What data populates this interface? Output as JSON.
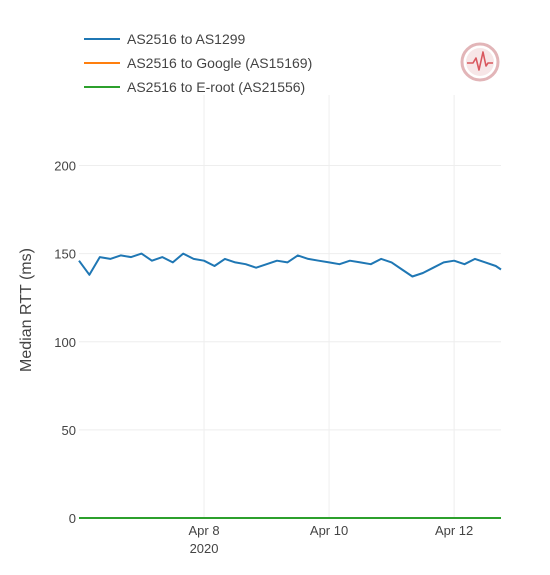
{
  "chart_data": {
    "type": "line",
    "ylabel": "Median RTT (ms)",
    "ylim": [
      0,
      240
    ],
    "yticks": [
      0,
      50,
      100,
      150,
      200
    ],
    "xlim": [
      "2020-04-06T00:00",
      "2020-04-12T18:00"
    ],
    "xticks": [
      {
        "x": "2020-04-08",
        "label": "Apr 8",
        "sublabel": "2020"
      },
      {
        "x": "2020-04-10",
        "label": "Apr 10",
        "sublabel": ""
      },
      {
        "x": "2020-04-12",
        "label": "Apr 12",
        "sublabel": ""
      }
    ],
    "grid": true,
    "legend_position": "top-left",
    "series": [
      {
        "name": "AS2516 to AS1299",
        "color": "#1f77b4",
        "x": [
          "2020-04-06T00:00",
          "2020-04-06T04:00",
          "2020-04-06T08:00",
          "2020-04-06T12:00",
          "2020-04-06T16:00",
          "2020-04-06T20:00",
          "2020-04-07T00:00",
          "2020-04-07T04:00",
          "2020-04-07T08:00",
          "2020-04-07T12:00",
          "2020-04-07T16:00",
          "2020-04-07T20:00",
          "2020-04-08T00:00",
          "2020-04-08T04:00",
          "2020-04-08T08:00",
          "2020-04-08T12:00",
          "2020-04-08T16:00",
          "2020-04-08T20:00",
          "2020-04-09T00:00",
          "2020-04-09T04:00",
          "2020-04-09T08:00",
          "2020-04-09T12:00",
          "2020-04-09T16:00",
          "2020-04-09T20:00",
          "2020-04-10T00:00",
          "2020-04-10T04:00",
          "2020-04-10T08:00",
          "2020-04-10T12:00",
          "2020-04-10T16:00",
          "2020-04-10T20:00",
          "2020-04-11T00:00",
          "2020-04-11T04:00",
          "2020-04-11T08:00",
          "2020-04-11T12:00",
          "2020-04-11T16:00",
          "2020-04-11T20:00",
          "2020-04-12T00:00",
          "2020-04-12T04:00",
          "2020-04-12T08:00",
          "2020-04-12T12:00",
          "2020-04-12T16:00",
          "2020-04-12T18:00"
        ],
        "values": [
          146,
          138,
          148,
          147,
          149,
          148,
          150,
          146,
          148,
          145,
          150,
          147,
          146,
          143,
          147,
          145,
          144,
          142,
          144,
          146,
          145,
          149,
          147,
          146,
          145,
          144,
          146,
          145,
          144,
          147,
          145,
          141,
          137,
          139,
          142,
          145,
          146,
          144,
          147,
          145,
          143,
          141
        ]
      },
      {
        "name": "AS2516 to Google (AS15169)",
        "color": "#ff7f0e",
        "x": [
          "2020-04-06T00:00",
          "2020-04-12T18:00"
        ],
        "values": [
          0,
          0
        ]
      },
      {
        "name": "AS2516 to E-root (AS21556)",
        "color": "#2ca02c",
        "x": [
          "2020-04-06T00:00",
          "2020-04-12T18:00"
        ],
        "values": [
          0,
          0
        ]
      }
    ]
  },
  "icons": {
    "corner_icon": "heartbeat-logo-icon"
  }
}
